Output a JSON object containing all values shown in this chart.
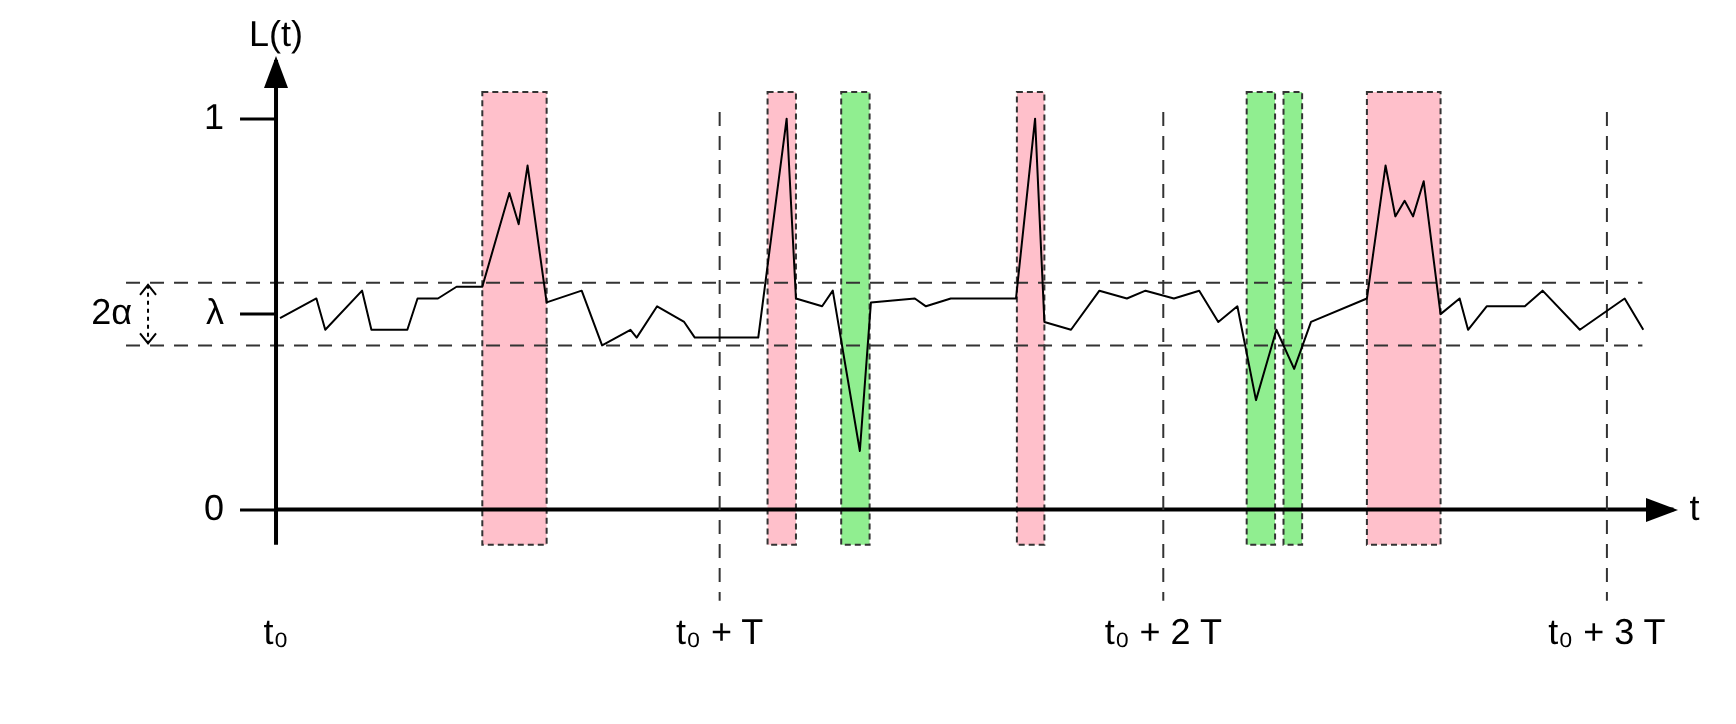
{
  "chart_data": {
    "type": "line",
    "xlabel": "t",
    "ylabel": "L(t)",
    "annotations": [
      "2α"
    ],
    "x": [
      0.009,
      0.091,
      0.111,
      0.194,
      0.215,
      0.296,
      0.319,
      0.365,
      0.407,
      0.465,
      0.526,
      0.547,
      0.567,
      0.61,
      0.689,
      0.735,
      0.799,
      0.813,
      0.859,
      0.92,
      0.944,
      1.087,
      1.151,
      1.172,
      1.231,
      1.255,
      1.316,
      1.341,
      1.44,
      1.465,
      1.521,
      1.668,
      1.711,
      1.732,
      1.792,
      1.856,
      1.918,
      1.96,
      2.024,
      2.081,
      2.124,
      2.167,
      2.209,
      2.255,
      2.295,
      2.333,
      2.459,
      2.501,
      2.523,
      2.544,
      2.563,
      2.587,
      2.625,
      2.668,
      2.687,
      2.729,
      2.815,
      2.855,
      2.939,
      3.04,
      3.082
    ],
    "series": [
      {
        "color": "#000000",
        "values": [
          0.49,
          0.54,
          0.46,
          0.56,
          0.46,
          0.46,
          0.54,
          0.54,
          0.57,
          0.57,
          0.81,
          0.73,
          0.88,
          0.53,
          0.56,
          0.42,
          0.46,
          0.44,
          0.52,
          0.48,
          0.44,
          0.44,
          1.0,
          0.54,
          0.52,
          0.56,
          0.15,
          0.53,
          0.54,
          0.52,
          0.54,
          0.54,
          1.0,
          0.48,
          0.46,
          0.56,
          0.54,
          0.56,
          0.54,
          0.56,
          0.48,
          0.52,
          0.28,
          0.46,
          0.36,
          0.48,
          0.54,
          0.88,
          0.75,
          0.79,
          0.75,
          0.84,
          0.5,
          0.54,
          0.46,
          0.52,
          0.52,
          0.56,
          0.46,
          0.54,
          0.46
        ]
      }
    ],
    "xlim": [
      0,
      3.15
    ],
    "ylim": [
      -0.09,
      1.15
    ],
    "xticks": [
      {
        "value": 0,
        "label": "t₀"
      },
      {
        "value": 1,
        "label": "t₀ + T"
      },
      {
        "value": 2,
        "label": "t₀ + 2 T"
      },
      {
        "value": 3,
        "label": "t₀ + 3 T"
      }
    ],
    "yticks": [
      0,
      {
        "value": 0.5,
        "label": "λ"
      },
      1
    ],
    "ref_lines": [
      {
        "axis": "y",
        "value": 0.58,
        "label": null,
        "line_style": "dashed"
      },
      {
        "axis": "y",
        "value": 0.42,
        "label": null,
        "line_style": "dashed"
      }
    ],
    "grid": "x",
    "bands": [
      {
        "axis": "x",
        "from": 0.465,
        "to": 0.61,
        "label": null,
        "color": "#ffc0cb"
      },
      {
        "axis": "x",
        "from": 1.108,
        "to": 1.172,
        "label": null,
        "color": "#ffc0cb"
      },
      {
        "axis": "x",
        "from": 1.274,
        "to": 1.338,
        "label": null,
        "color": "#90ee90"
      },
      {
        "axis": "x",
        "from": 1.67,
        "to": 1.732,
        "label": null,
        "color": "#ffc0cb"
      },
      {
        "axis": "x",
        "from": 2.188,
        "to": 2.252,
        "label": null,
        "color": "#90ee90"
      },
      {
        "axis": "x",
        "from": 2.271,
        "to": 2.313,
        "label": null,
        "color": "#90ee90"
      },
      {
        "axis": "x",
        "from": 2.459,
        "to": 2.625,
        "label": null,
        "color": "#ffc0cb"
      }
    ]
  }
}
